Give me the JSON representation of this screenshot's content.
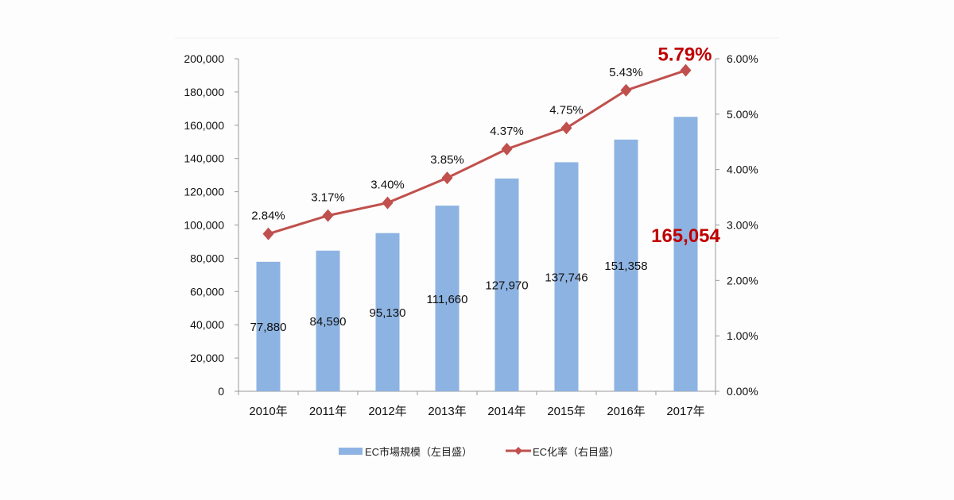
{
  "chart_data": {
    "type": "bar+line",
    "categories": [
      "2010年",
      "2011年",
      "2012年",
      "2013年",
      "2014年",
      "2015年",
      "2016年",
      "2017年"
    ],
    "series": [
      {
        "name": "EC市場規模（左目盛）",
        "type": "bar",
        "axis": "left",
        "values": [
          77880,
          84590,
          95130,
          111660,
          127970,
          137746,
          151358,
          165054
        ],
        "labels": [
          "77,880",
          "84,590",
          "95,130",
          "111,660",
          "127,970",
          "137,746",
          "151,358",
          "165,054"
        ],
        "color": "#8db3e2"
      },
      {
        "name": "EC化率（右目盛）",
        "type": "line",
        "axis": "right",
        "values": [
          2.84,
          3.17,
          3.4,
          3.85,
          4.37,
          4.75,
          5.43,
          5.79
        ],
        "labels": [
          "2.84%",
          "3.17%",
          "3.40%",
          "3.85%",
          "4.37%",
          "4.75%",
          "5.43%",
          "5.79%"
        ],
        "color": "#c0504d"
      }
    ],
    "highlight_color": "#c00000",
    "y_left": {
      "range": [
        0,
        200000
      ],
      "ticks": [
        "0",
        "20,000",
        "40,000",
        "60,000",
        "80,000",
        "100,000",
        "120,000",
        "140,000",
        "160,000",
        "180,000",
        "200,000"
      ]
    },
    "y_right": {
      "range": [
        0,
        6
      ],
      "ticks": [
        "0.00%",
        "1.00%",
        "2.00%",
        "3.00%",
        "4.00%",
        "5.00%",
        "6.00%"
      ]
    },
    "legend_position": "bottom",
    "grid": false
  }
}
